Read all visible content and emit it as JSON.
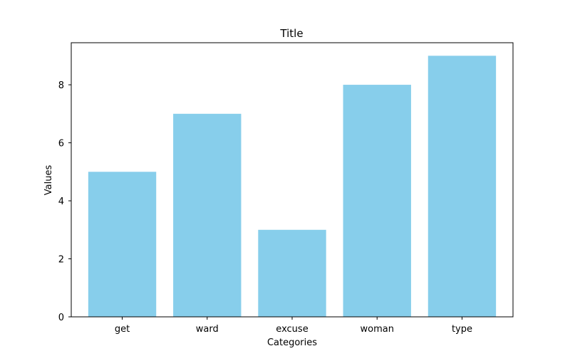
{
  "chart_data": {
    "type": "bar",
    "title": "Title",
    "xlabel": "Categories",
    "ylabel": "Values",
    "categories": [
      "get",
      "ward",
      "excuse",
      "woman",
      "type"
    ],
    "values": [
      5,
      7,
      3,
      8,
      9
    ],
    "ylim": [
      0,
      9.45
    ],
    "yticks": [
      0,
      2,
      4,
      6,
      8
    ],
    "ytick_labels": [
      "0",
      "2",
      "4",
      "6",
      "8"
    ],
    "bar_color": "#87CEEB",
    "grid": false,
    "legend": "none"
  }
}
